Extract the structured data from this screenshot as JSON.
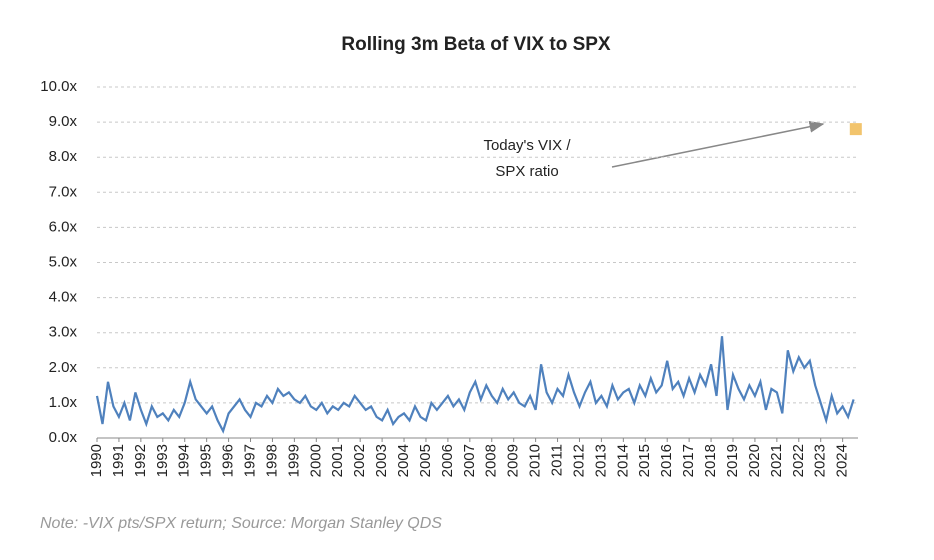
{
  "chart_data": {
    "type": "line",
    "title": "Rolling 3m Beta of VIX to SPX",
    "note": "Note:  -VIX pts/SPX return; Source: Morgan Stanley QDS",
    "annotation": [
      "Today's VIX  /",
      "SPX ratio"
    ],
    "xlim": [
      1990,
      2024.7
    ],
    "xticks": [
      1990,
      1991,
      1992,
      1993,
      1994,
      1995,
      1996,
      1997,
      1998,
      1999,
      2000,
      2001,
      2002,
      2003,
      2004,
      2005,
      2006,
      2007,
      2008,
      2009,
      2010,
      2011,
      2012,
      2013,
      2014,
      2015,
      2016,
      2017,
      2018,
      2019,
      2020,
      2021,
      2022,
      2023,
      2024
    ],
    "ylim": [
      0,
      10
    ],
    "yticks": [
      {
        "value": 0,
        "label": "0.0x"
      },
      {
        "value": 1,
        "label": "1.0x"
      },
      {
        "value": 2,
        "label": "2.0x"
      },
      {
        "value": 3,
        "label": "3.0x"
      },
      {
        "value": 4,
        "label": "4.0x"
      },
      {
        "value": 5,
        "label": "5.0x"
      },
      {
        "value": 6,
        "label": "6.0x"
      },
      {
        "value": 7,
        "label": "7.0x"
      },
      {
        "value": 8,
        "label": "8.0x"
      },
      {
        "value": 9,
        "label": "9.0x"
      },
      {
        "value": 10,
        "label": "10.0x"
      }
    ],
    "grid": true,
    "x": [
      1990,
      1990.25,
      1990.5,
      1990.75,
      1991,
      1991.25,
      1991.5,
      1991.75,
      1992,
      1992.25,
      1992.5,
      1992.75,
      1993,
      1993.25,
      1993.5,
      1993.75,
      1994,
      1994.25,
      1994.5,
      1994.75,
      1995,
      1995.25,
      1995.5,
      1995.75,
      1996,
      1996.25,
      1996.5,
      1996.75,
      1997,
      1997.25,
      1997.5,
      1997.75,
      1998,
      1998.25,
      1998.5,
      1998.75,
      1999,
      1999.25,
      1999.5,
      1999.75,
      2000,
      2000.25,
      2000.5,
      2000.75,
      2001,
      2001.25,
      2001.5,
      2001.75,
      2002,
      2002.25,
      2002.5,
      2002.75,
      2003,
      2003.25,
      2003.5,
      2003.75,
      2004,
      2004.25,
      2004.5,
      2004.75,
      2005,
      2005.25,
      2005.5,
      2005.75,
      2006,
      2006.25,
      2006.5,
      2006.75,
      2007,
      2007.25,
      2007.5,
      2007.75,
      2008,
      2008.25,
      2008.5,
      2008.75,
      2009,
      2009.25,
      2009.5,
      2009.75,
      2010,
      2010.25,
      2010.5,
      2010.75,
      2011,
      2011.25,
      2011.5,
      2011.75,
      2012,
      2012.25,
      2012.5,
      2012.75,
      2013,
      2013.25,
      2013.5,
      2013.75,
      2014,
      2014.25,
      2014.5,
      2014.75,
      2015,
      2015.25,
      2015.5,
      2015.75,
      2016,
      2016.25,
      2016.5,
      2016.75,
      2017,
      2017.25,
      2017.5,
      2017.75,
      2018,
      2018.25,
      2018.5,
      2018.75,
      2019,
      2019.25,
      2019.5,
      2019.75,
      2020,
      2020.25,
      2020.5,
      2020.75,
      2021,
      2021.25,
      2021.5,
      2021.75,
      2022,
      2022.25,
      2022.5,
      2022.75,
      2023,
      2023.25,
      2023.5,
      2023.75,
      2024,
      2024.25,
      2024.5
    ],
    "series": [
      {
        "color": "#4f81bd",
        "values": [
          1.2,
          0.4,
          1.6,
          0.9,
          0.6,
          1.0,
          0.5,
          1.3,
          0.8,
          0.4,
          0.9,
          0.6,
          0.7,
          0.5,
          0.8,
          0.6,
          1.0,
          1.6,
          1.1,
          0.9,
          0.7,
          0.9,
          0.5,
          0.2,
          0.7,
          0.9,
          1.1,
          0.8,
          0.6,
          1.0,
          0.9,
          1.2,
          1.0,
          1.4,
          1.2,
          1.3,
          1.1,
          1.0,
          1.2,
          0.9,
          0.8,
          1.0,
          0.7,
          0.9,
          0.8,
          1.0,
          0.9,
          1.2,
          1.0,
          0.8,
          0.9,
          0.6,
          0.5,
          0.8,
          0.4,
          0.6,
          0.7,
          0.5,
          0.9,
          0.6,
          0.5,
          1.0,
          0.8,
          1.0,
          1.2,
          0.9,
          1.1,
          0.8,
          1.3,
          1.6,
          1.1,
          1.5,
          1.2,
          1.0,
          1.4,
          1.1,
          1.3,
          1.0,
          0.9,
          1.2,
          0.8,
          2.1,
          1.3,
          1.0,
          1.4,
          1.2,
          1.8,
          1.3,
          0.9,
          1.3,
          1.6,
          1.0,
          1.2,
          0.9,
          1.5,
          1.1,
          1.3,
          1.4,
          1.0,
          1.5,
          1.2,
          1.7,
          1.3,
          1.5,
          2.2,
          1.4,
          1.6,
          1.2,
          1.7,
          1.3,
          1.8,
          1.5,
          2.1,
          1.2,
          2.9,
          0.8,
          1.8,
          1.4,
          1.1,
          1.5,
          1.2,
          1.6,
          0.8,
          1.4,
          1.3,
          0.7,
          2.5,
          1.9,
          2.3,
          2.0,
          2.2,
          1.5,
          1.0,
          0.5,
          1.2,
          0.7,
          0.9,
          0.6,
          1.1
        ]
      }
    ],
    "today": {
      "x": 2024.6,
      "value": 8.8,
      "color": "#f2c46d"
    }
  }
}
